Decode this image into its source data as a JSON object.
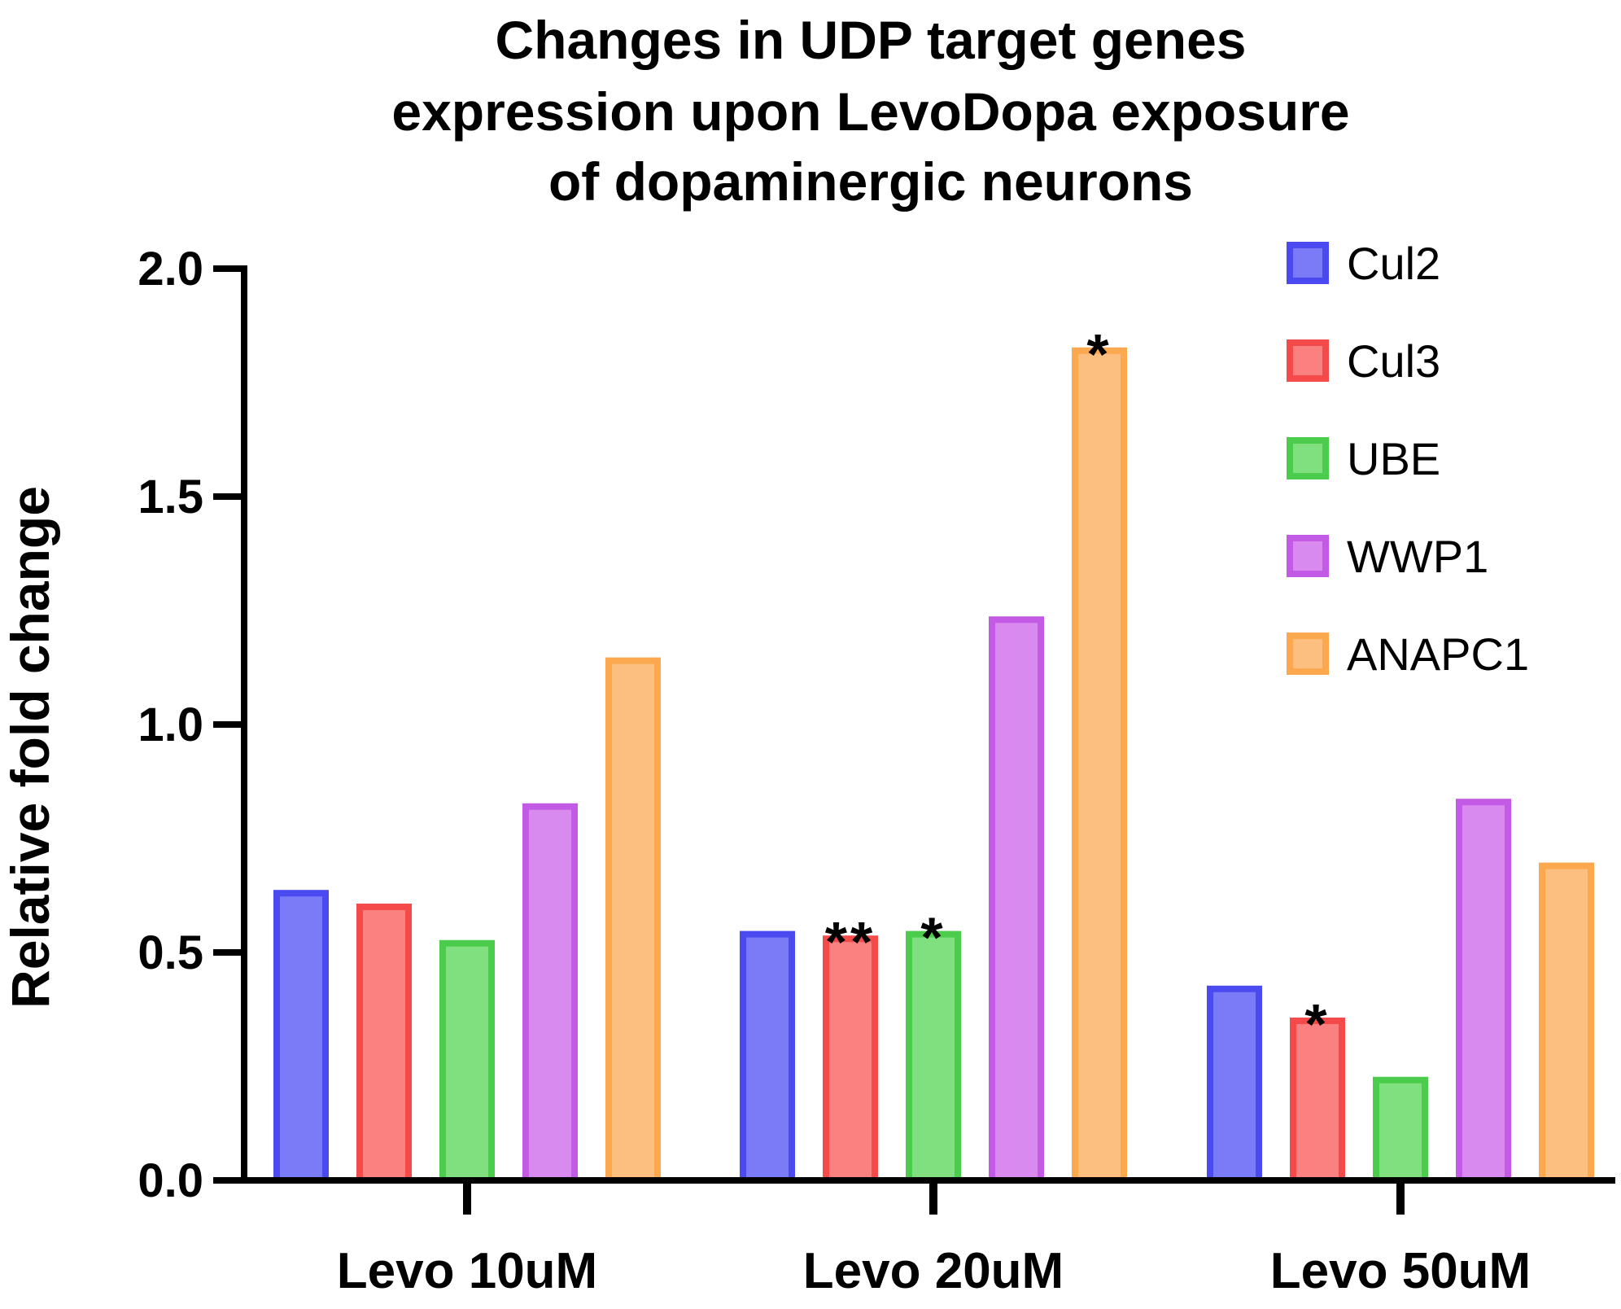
{
  "chart_data": {
    "type": "bar",
    "title_lines": [
      "Changes in UDP target genes",
      "expression upon LevoDopa exposure",
      "of dopaminergic neurons"
    ],
    "xlabel": "",
    "ylabel": "Relative fold change",
    "ylim": [
      0,
      2.0
    ],
    "yticks": [
      "0.0",
      "0.5",
      "1.0",
      "1.5",
      "2.0"
    ],
    "categories": [
      "Levo 10uM",
      "Levo 20uM",
      "Levo 50uM"
    ],
    "series": [
      {
        "name": "Cul2",
        "color": "#7b7bf7",
        "edge": "#4a4af0",
        "values": [
          0.63,
          0.54,
          0.42
        ],
        "annotations": [
          "",
          "",
          ""
        ]
      },
      {
        "name": "Cul3",
        "color": "#fb8080",
        "edge": "#f44a4a",
        "values": [
          0.6,
          0.53,
          0.35
        ],
        "annotations": [
          "",
          "**",
          "*"
        ]
      },
      {
        "name": "UBE",
        "color": "#80e080",
        "edge": "#4ccc4c",
        "values": [
          0.52,
          0.54,
          0.22
        ],
        "annotations": [
          "",
          "*",
          ""
        ]
      },
      {
        "name": "WWP1",
        "color": "#d98aee",
        "edge": "#c25ae6",
        "values": [
          0.82,
          1.23,
          0.83
        ],
        "annotations": [
          "",
          "",
          ""
        ]
      },
      {
        "name": "ANAPC1",
        "color": "#fdbf80",
        "edge": "#fca84e",
        "values": [
          1.14,
          1.82,
          0.69
        ],
        "annotations": [
          "",
          "*",
          ""
        ]
      }
    ],
    "grid": false,
    "legend_position": "top-right"
  }
}
